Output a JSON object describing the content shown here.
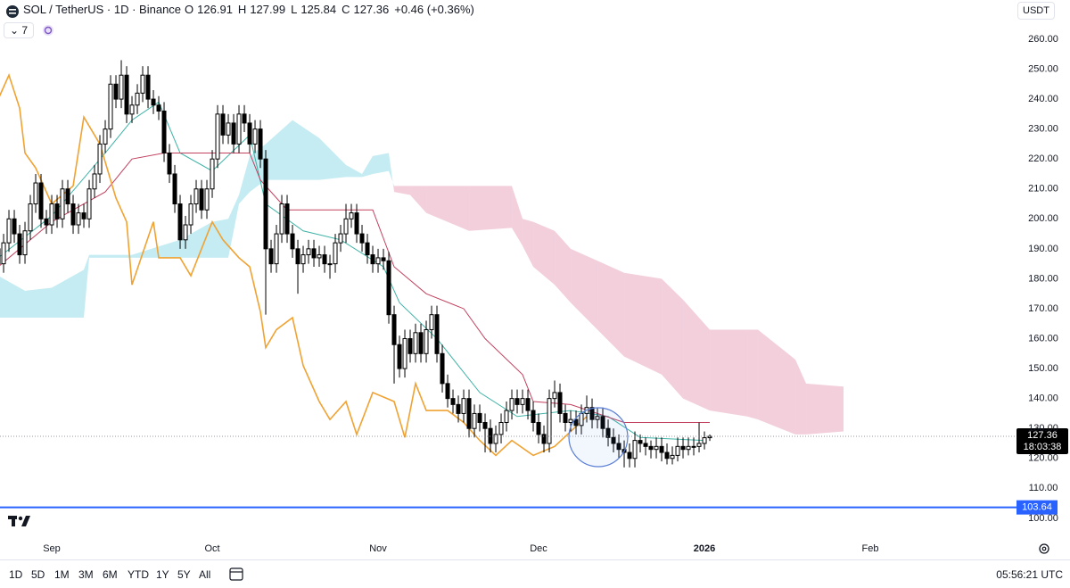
{
  "header": {
    "symbol": "SOL / TetherUS · 1D · Binance",
    "o_label": "O",
    "h_label": "H",
    "l_label": "L",
    "c_label": "C",
    "change": "+0.46 (+0.36%)",
    "indicator_count": "7",
    "currency": "USDT"
  },
  "chart_data": {
    "type": "candlestick",
    "x": [
      0,
      1,
      2,
      3,
      4,
      5,
      6,
      7,
      8,
      9,
      10,
      11,
      12,
      13,
      14,
      15,
      16,
      17,
      18,
      19,
      20,
      21,
      22,
      23,
      24,
      25,
      26,
      27,
      28,
      29,
      30,
      31,
      32,
      33,
      34,
      35,
      36,
      37,
      38,
      39,
      40,
      41,
      42,
      43,
      44,
      45,
      46,
      47,
      48,
      49,
      50,
      51,
      52,
      53,
      54,
      55,
      56,
      57,
      58,
      59,
      60,
      61,
      62,
      63,
      64,
      65,
      66,
      67,
      68,
      69,
      70,
      71,
      72,
      73,
      74,
      75,
      76,
      77,
      78,
      79,
      80,
      81,
      82,
      83,
      84,
      85,
      86,
      87,
      88,
      89,
      90,
      91,
      92,
      93,
      94,
      95,
      96,
      97,
      98,
      99,
      100,
      101,
      102,
      103,
      104,
      105,
      106,
      107,
      108,
      109,
      110,
      111,
      112,
      113,
      114,
      115,
      116,
      117,
      118,
      119,
      120,
      121,
      122,
      123,
      124,
      125,
      126,
      127,
      128,
      129,
      130,
      131,
      132,
      133
    ],
    "open": [
      190,
      185,
      192,
      200,
      195,
      188,
      196,
      205,
      212,
      200,
      198,
      205,
      200,
      210,
      205,
      198,
      202,
      200,
      210,
      215,
      225,
      230,
      245,
      240,
      248,
      235,
      238,
      242,
      248,
      240,
      238,
      236,
      222,
      215,
      205,
      193,
      198,
      205,
      210,
      203,
      210,
      220,
      235,
      228,
      232,
      225,
      235,
      232,
      225,
      230,
      220,
      190,
      185,
      195,
      205,
      195,
      190,
      185,
      188,
      190,
      187,
      188,
      185,
      185,
      192,
      195,
      200,
      202,
      195,
      192,
      188,
      185,
      187,
      186,
      168,
      158,
      150,
      160,
      155,
      162,
      155,
      163,
      168,
      155,
      145,
      140,
      138,
      135,
      140,
      130,
      135,
      132,
      130,
      125,
      128,
      132,
      136,
      140,
      138,
      140,
      136,
      132,
      128,
      125,
      140,
      142,
      135,
      132,
      133,
      131,
      135,
      137,
      133,
      134,
      130,
      127,
      125,
      123,
      122,
      120,
      126,
      125,
      124,
      123,
      124,
      122,
      120,
      121,
      124,
      123,
      124,
      124,
      125,
      126.91
    ],
    "high": [
      193,
      195,
      203,
      203,
      198,
      199,
      208,
      215,
      215,
      203,
      208,
      208,
      213,
      213,
      208,
      205,
      205,
      213,
      218,
      228,
      233,
      248,
      248,
      253,
      251,
      241,
      245,
      251,
      251,
      243,
      241,
      239,
      225,
      218,
      208,
      201,
      208,
      213,
      213,
      213,
      223,
      238,
      238,
      235,
      235,
      238,
      238,
      235,
      233,
      233,
      223,
      193,
      198,
      208,
      208,
      198,
      193,
      191,
      193,
      193,
      191,
      191,
      188,
      195,
      198,
      205,
      205,
      205,
      198,
      195,
      191,
      190,
      190,
      189,
      171,
      161,
      163,
      163,
      165,
      165,
      166,
      171,
      171,
      158,
      148,
      143,
      141,
      143,
      143,
      138,
      138,
      135,
      133,
      131,
      135,
      139,
      143,
      143,
      143,
      143,
      139,
      135,
      131,
      143,
      146,
      145,
      138,
      136,
      136,
      138,
      141,
      140,
      137,
      137,
      133,
      130,
      128,
      126,
      125,
      129,
      128,
      127,
      126,
      127,
      127,
      125,
      124,
      127,
      127,
      127,
      127,
      132,
      129,
      127.99
    ],
    "low": [
      182,
      182,
      189,
      192,
      185,
      185,
      193,
      202,
      197,
      195,
      195,
      197,
      197,
      202,
      195,
      195,
      197,
      197,
      207,
      212,
      222,
      227,
      237,
      237,
      232,
      232,
      235,
      239,
      237,
      235,
      233,
      219,
      212,
      202,
      190,
      190,
      195,
      202,
      200,
      200,
      207,
      217,
      225,
      225,
      222,
      222,
      229,
      222,
      222,
      217,
      168,
      182,
      182,
      192,
      192,
      187,
      175,
      182,
      185,
      184,
      184,
      182,
      180,
      182,
      189,
      192,
      197,
      192,
      189,
      185,
      182,
      182,
      183,
      165,
      145,
      147,
      147,
      152,
      152,
      152,
      152,
      160,
      152,
      142,
      137,
      135,
      132,
      132,
      127,
      127,
      129,
      122,
      122,
      122,
      125,
      129,
      133,
      135,
      135,
      133,
      129,
      125,
      122,
      122,
      137,
      132,
      129,
      129,
      128,
      128,
      132,
      130,
      130,
      127,
      124,
      122,
      120,
      117,
      117,
      117,
      122,
      121,
      120,
      120,
      119,
      118,
      118,
      119,
      120,
      121,
      121,
      122,
      123,
      125.84
    ],
    "close": [
      185,
      192,
      200,
      195,
      188,
      196,
      205,
      212,
      200,
      198,
      205,
      200,
      210,
      205,
      198,
      202,
      200,
      210,
      215,
      225,
      230,
      245,
      240,
      248,
      235,
      238,
      242,
      248,
      240,
      238,
      236,
      222,
      215,
      205,
      193,
      198,
      205,
      210,
      203,
      210,
      220,
      235,
      228,
      232,
      225,
      235,
      232,
      225,
      230,
      220,
      190,
      185,
      195,
      205,
      195,
      190,
      185,
      188,
      190,
      187,
      188,
      185,
      185,
      192,
      195,
      200,
      202,
      195,
      192,
      188,
      185,
      187,
      186,
      168,
      158,
      150,
      160,
      155,
      162,
      155,
      163,
      168,
      155,
      145,
      140,
      138,
      135,
      140,
      130,
      135,
      132,
      130,
      125,
      128,
      132,
      136,
      140,
      138,
      140,
      136,
      132,
      128,
      125,
      140,
      142,
      135,
      132,
      133,
      131,
      135,
      137,
      133,
      134,
      130,
      127,
      125,
      123,
      122,
      120,
      126,
      125,
      124,
      123,
      124,
      122,
      120,
      121,
      124,
      123,
      124,
      124,
      125,
      126.91,
      127.36
    ],
    "up_color": "#ffffff",
    "down_color": "#000000",
    "wick_color": "#000000",
    "xlim": [
      0.33,
      190.33
    ],
    "xticks": [
      {
        "value": 10,
        "label": "Sep"
      },
      {
        "value": 40,
        "label": "Oct"
      },
      {
        "value": 71,
        "label": "Nov"
      },
      {
        "value": 101,
        "label": "Dec"
      },
      {
        "value": 132,
        "label": "2026"
      },
      {
        "value": 163,
        "label": "Feb"
      }
    ],
    "ylim": [
      94.3,
      273.1
    ],
    "yticks": [
      {
        "value": 100,
        "label": "100.00"
      },
      {
        "value": 110,
        "label": "110.00"
      },
      {
        "value": 120,
        "label": "120.00"
      },
      {
        "value": 130,
        "label": "130.00"
      },
      {
        "value": 140,
        "label": "140.00"
      },
      {
        "value": 150,
        "label": "150.00"
      },
      {
        "value": 160,
        "label": "160.00"
      },
      {
        "value": 170,
        "label": "170.00"
      },
      {
        "value": 180,
        "label": "180.00"
      },
      {
        "value": 190,
        "label": "190.00"
      },
      {
        "value": 200,
        "label": "200.00"
      },
      {
        "value": 210,
        "label": "210.00"
      },
      {
        "value": 220,
        "label": "220.00"
      },
      {
        "value": 230,
        "label": "230.00"
      },
      {
        "value": 240,
        "label": "240.00"
      },
      {
        "value": 250,
        "label": "250.00"
      },
      {
        "value": 260,
        "label": "260.00"
      }
    ],
    "overlays": {
      "conversion": {
        "color": "#3fb3a6",
        "x": [
          0,
          10,
          20,
          25,
          30,
          34,
          40,
          47,
          50,
          57,
          64,
          72,
          75,
          82,
          90,
          97,
          107,
          114,
          120,
          132
        ],
        "values": [
          187,
          201,
          222,
          233,
          239,
          222,
          216,
          228,
          205,
          196,
          193,
          184,
          172,
          160,
          142,
          134,
          136,
          134,
          127,
          126
        ]
      },
      "base": {
        "color": "#c2415f",
        "x": [
          0,
          10,
          20,
          25,
          31,
          47,
          49,
          54,
          70,
          74,
          80,
          87,
          91,
          98,
          100,
          107,
          117,
          133
        ],
        "values": [
          184,
          199,
          209,
          220,
          222,
          222,
          213,
          203,
          203,
          184,
          175,
          170,
          160,
          148,
          139,
          138,
          132,
          132
        ]
      },
      "lagging": {
        "color": "#f0a232",
        "x": [
          0,
          2,
          4,
          5,
          7,
          10,
          14,
          16,
          19,
          22,
          24,
          25,
          29,
          30,
          34,
          36,
          40,
          42,
          45,
          47,
          49,
          50,
          52,
          55,
          57,
          60,
          62,
          65,
          67,
          70,
          74,
          76,
          78,
          80,
          84,
          87,
          90,
          93,
          96,
          100,
          104,
          107,
          110
        ],
        "values": [
          240,
          248,
          237,
          222,
          217,
          205,
          211,
          234,
          225,
          207,
          199,
          178,
          199,
          187,
          187,
          181,
          199,
          193,
          187,
          184,
          169,
          157,
          163,
          167,
          151,
          139,
          133,
          139,
          128,
          142,
          139,
          127,
          145,
          136,
          136,
          132,
          126,
          121,
          126,
          121,
          124,
          129,
          134
        ]
      }
    },
    "cloud": {
      "x": [
        0,
        5,
        10,
        15,
        16,
        17,
        25,
        34,
        40,
        43,
        45,
        47,
        50,
        55,
        60,
        65,
        68,
        70,
        73,
        74,
        77,
        80,
        88,
        96,
        98,
        100,
        104,
        107,
        112,
        117,
        124,
        128,
        133,
        140,
        142,
        149,
        151,
        158
      ],
      "span_a": [
        181,
        176,
        177,
        182,
        183,
        188,
        188,
        193,
        199,
        200,
        208,
        221,
        225,
        233,
        227,
        218,
        215,
        221,
        222,
        209,
        208,
        202,
        196,
        197,
        191,
        184,
        178,
        172,
        163,
        154,
        148,
        140,
        136,
        134,
        133,
        128,
        128,
        129
      ],
      "span_b": [
        167,
        167,
        167,
        167,
        167,
        187,
        187,
        187,
        187,
        187,
        205,
        209,
        213,
        213,
        213,
        214,
        214,
        215,
        216,
        211,
        211,
        211,
        211,
        211,
        200,
        199,
        196,
        190,
        186,
        182,
        180,
        173,
        163,
        163,
        163,
        153,
        145,
        144
      ],
      "bull_color": "#c4ecf2",
      "bear_color": "#f3cfdc"
    },
    "hline": {
      "value": 103.64,
      "color": "#2962ff"
    },
    "countdown": "18:03:38"
  },
  "toolbar": {
    "ranges": [
      "1D",
      "5D",
      "1M",
      "3M",
      "6M",
      "YTD",
      "1Y",
      "5Y",
      "All"
    ],
    "time": "05:56:21 UTC"
  }
}
